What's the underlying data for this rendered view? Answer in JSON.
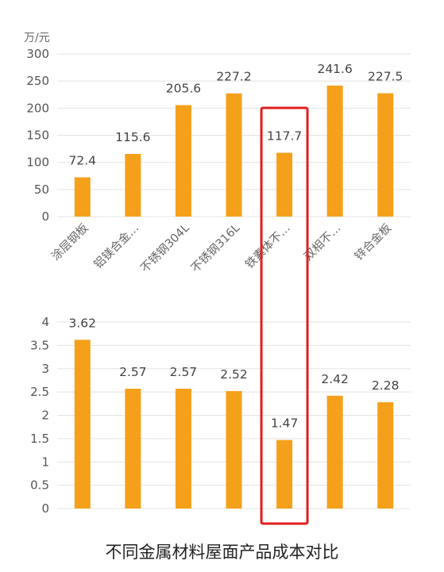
{
  "caption": "不同金属材料屋面产品成本对比",
  "colors": {
    "bar": "#F5A01A",
    "highlight": "#E01E1E",
    "grid": "#E3E3E3"
  },
  "chart_data": [
    {
      "type": "bar",
      "ylabel": "万/元",
      "ylim": [
        0,
        300
      ],
      "yticks": [
        0,
        50,
        100,
        150,
        200,
        250,
        300
      ],
      "categories": [
        "涂层钢板",
        "铝镁合金…",
        "不锈钢304L",
        "不锈钢316L",
        "铁素体不…",
        "双相不…",
        "锌合金板"
      ],
      "values": [
        72.4,
        115.6,
        205.6,
        227.2,
        117.7,
        241.6,
        227.5
      ],
      "data_labels": [
        "72.4",
        "115.6",
        "205.6",
        "227.2",
        "117.7",
        "241.6",
        "227.5"
      ],
      "grid": true,
      "highlighted_category_index": 4
    },
    {
      "type": "bar",
      "ylim": [
        0,
        4
      ],
      "yticks": [
        "0",
        "0.5",
        "1",
        "1.5",
        "2",
        "2.5",
        "3",
        "3.5",
        "4"
      ],
      "values": [
        3.62,
        2.57,
        2.57,
        2.52,
        1.47,
        2.42,
        2.28
      ],
      "data_labels": [
        "3.62",
        "2.57",
        "2.57",
        "2.52",
        "1.47",
        "2.42",
        "2.28"
      ],
      "grid": true,
      "highlighted_category_index": 4
    }
  ]
}
